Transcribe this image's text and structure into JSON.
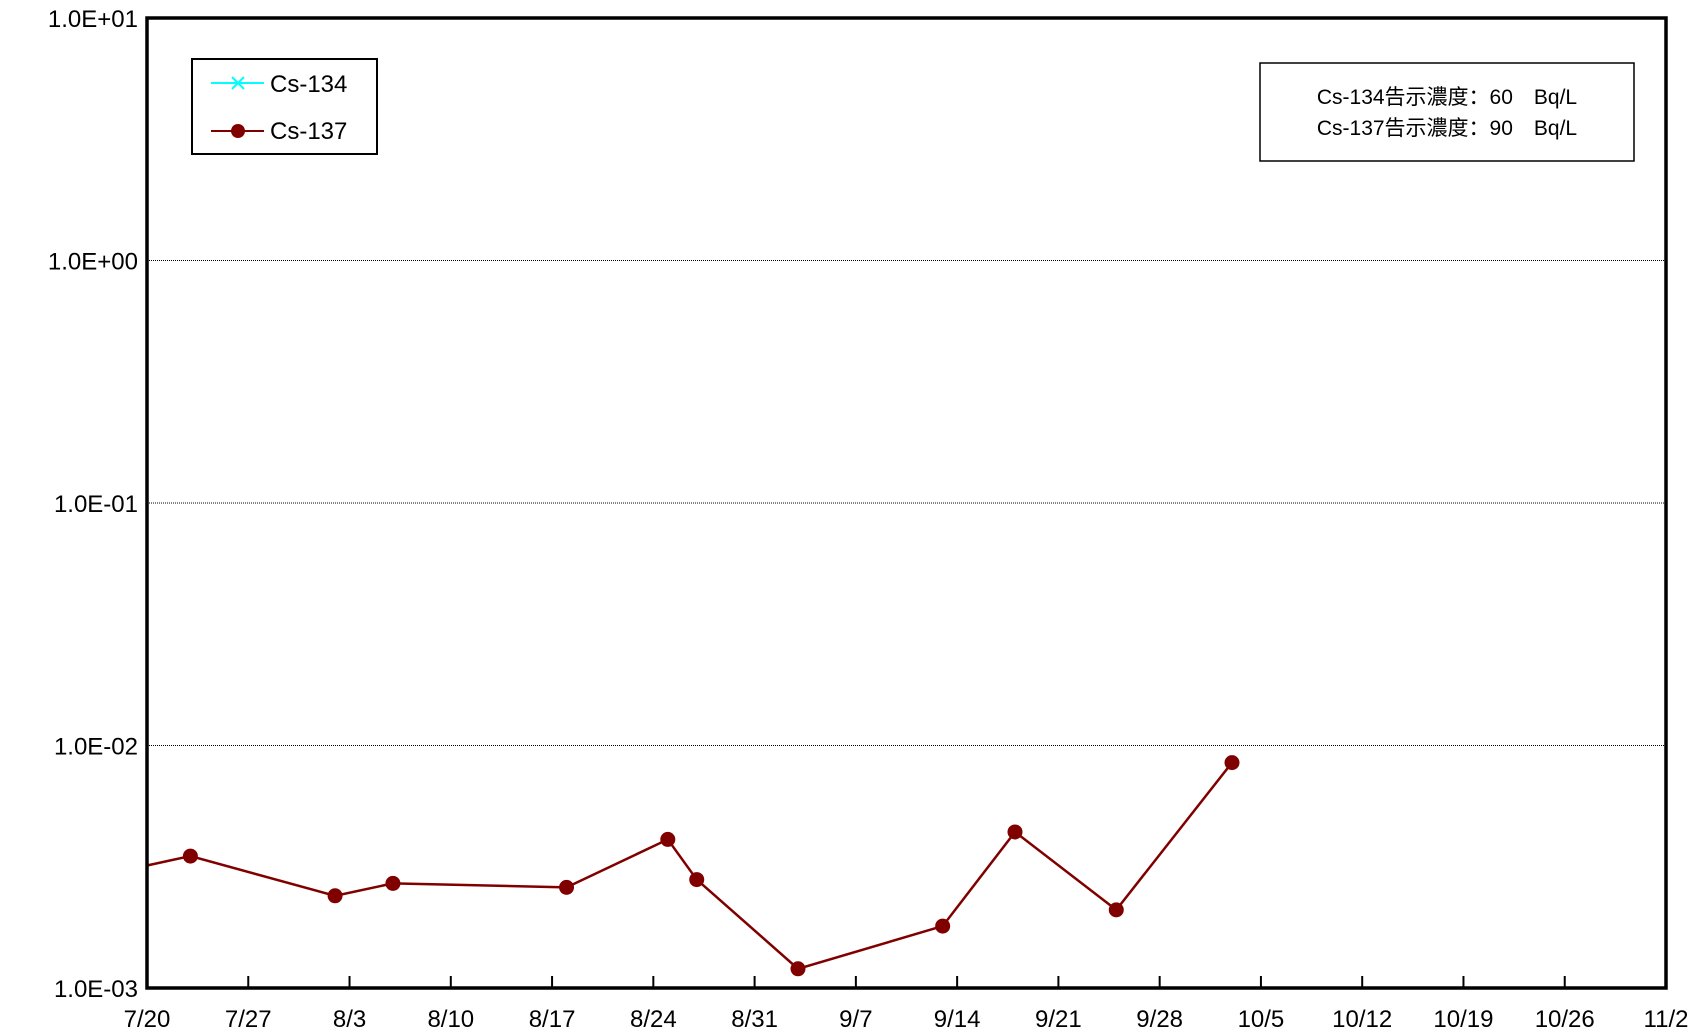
{
  "chart_data": {
    "type": "line",
    "yscale": "log",
    "ylim": [
      0.001,
      10
    ],
    "y_ticks": [
      "1.0E-03",
      "1.0E-02",
      "1.0E-01",
      "1.0E+00",
      "1.0E+01"
    ],
    "xlim": [
      "7/20",
      "11/2"
    ],
    "x_ticks": [
      "7/20",
      "7/27",
      "8/3",
      "8/10",
      "8/17",
      "8/24",
      "8/31",
      "9/7",
      "9/14",
      "9/21",
      "9/28",
      "10/5",
      "10/12",
      "10/19",
      "10/26",
      "11/2"
    ],
    "grid": true,
    "legend_position": "top-left",
    "series": [
      {
        "name": "Cs-134",
        "color": "#00ffff",
        "marker": "x",
        "points": []
      },
      {
        "name": "Cs-137",
        "color": "#800000",
        "marker": "circle",
        "points": [
          {
            "x": "7/20",
            "y": 0.0032
          },
          {
            "x": "7/23",
            "y": 0.0035
          },
          {
            "x": "8/2",
            "y": 0.0024
          },
          {
            "x": "8/6",
            "y": 0.0027
          },
          {
            "x": "8/18",
            "y": 0.0026
          },
          {
            "x": "8/25",
            "y": 0.0041
          },
          {
            "x": "8/27",
            "y": 0.0028
          },
          {
            "x": "9/3",
            "y": 0.0012
          },
          {
            "x": "9/13",
            "y": 0.0018
          },
          {
            "x": "9/18",
            "y": 0.0044
          },
          {
            "x": "9/25",
            "y": 0.0021
          },
          {
            "x": "10/3",
            "y": 0.0085
          }
        ]
      }
    ],
    "annotation": {
      "line1": "Cs-134告示濃度：60　Bq/L",
      "line2": "Cs-137告示濃度：90　Bq/L"
    }
  }
}
